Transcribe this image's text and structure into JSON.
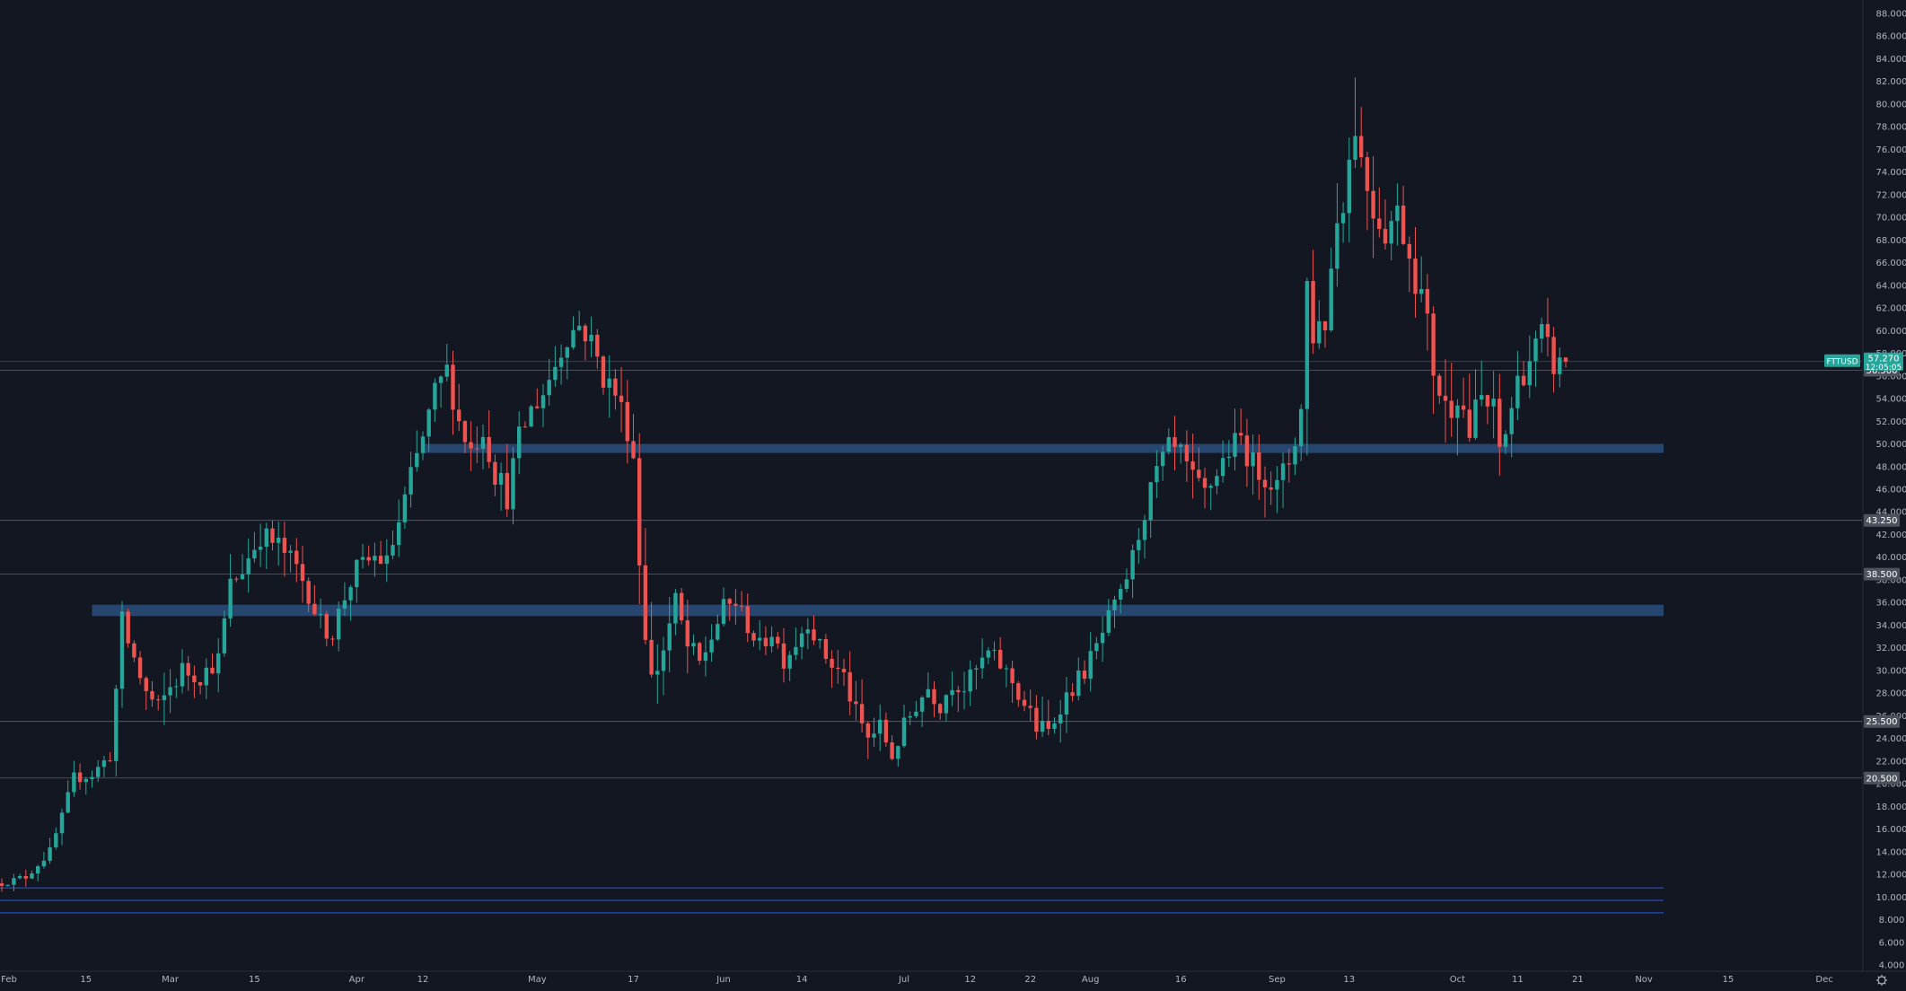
{
  "chart_data": {
    "type": "candlestick",
    "symbol": "FTTUSD",
    "last_price": "57.270",
    "countdown": "12:05:05",
    "ylim": [
      4,
      88
    ],
    "y_ticks": [
      4,
      6,
      8,
      10,
      12,
      14,
      16,
      18,
      20,
      22,
      24,
      26,
      28,
      30,
      32,
      34,
      36,
      38,
      40,
      42,
      44,
      46,
      48,
      50,
      52,
      54,
      56,
      58,
      60,
      62,
      64,
      66,
      68,
      70,
      72,
      74,
      76,
      78,
      80,
      82,
      84,
      86,
      88
    ],
    "y_tick_decimals": 3,
    "x_labels": [
      {
        "label": "Feb",
        "day": 0
      },
      {
        "label": "15",
        "day": 14
      },
      {
        "label": "Mar",
        "day": 28
      },
      {
        "label": "15",
        "day": 42
      },
      {
        "label": "Apr",
        "day": 59
      },
      {
        "label": "12",
        "day": 70
      },
      {
        "label": "May",
        "day": 89
      },
      {
        "label": "17",
        "day": 105
      },
      {
        "label": "Jun",
        "day": 120
      },
      {
        "label": "14",
        "day": 133
      },
      {
        "label": "Jul",
        "day": 150
      },
      {
        "label": "12",
        "day": 161
      },
      {
        "label": "22",
        "day": 171
      },
      {
        "label": "Aug",
        "day": 181
      },
      {
        "label": "16",
        "day": 196
      },
      {
        "label": "Sep",
        "day": 212
      },
      {
        "label": "13",
        "day": 224
      },
      {
        "label": "Oct",
        "day": 242
      },
      {
        "label": "11",
        "day": 252
      },
      {
        "label": "21",
        "day": 262
      },
      {
        "label": "Nov",
        "day": 273
      },
      {
        "label": "15",
        "day": 287
      },
      {
        "label": "Dec",
        "day": 303
      }
    ],
    "levels": [
      {
        "value": 56.5,
        "label": "56.500"
      },
      {
        "value": 43.25,
        "label": "43.250"
      },
      {
        "value": 38.5,
        "label": "38.500"
      },
      {
        "value": 25.5,
        "label": "25.500"
      },
      {
        "value": 20.5,
        "label": "20.500"
      }
    ],
    "zones": [
      {
        "low": 49.2,
        "high": 50.0
      },
      {
        "low": 34.8,
        "high": 35.8
      }
    ],
    "blue_lines": [
      10.8,
      9.7,
      8.6
    ],
    "colors": {
      "background": "#131722",
      "up": "#26a69a",
      "down": "#ef5350",
      "zone": "#2a4e7c",
      "blue_line": "#2962ff",
      "grid_text": "#b2b5be",
      "badge": "#26a69a"
    },
    "anchors": [
      [
        0,
        11.2,
        0.6
      ],
      [
        4,
        11.8,
        0.8
      ],
      [
        8,
        14.0,
        1.0
      ],
      [
        10,
        17.0,
        1.2
      ],
      [
        12,
        20.5,
        1.3
      ],
      [
        15,
        20.8,
        1.2
      ],
      [
        18,
        22.5,
        1.5
      ],
      [
        20,
        34.0,
        3.0
      ],
      [
        22,
        31.0,
        3.0
      ],
      [
        24,
        28.0,
        2.5
      ],
      [
        26,
        26.5,
        2.5
      ],
      [
        28,
        28.5,
        2.5
      ],
      [
        30,
        30.0,
        2.5
      ],
      [
        33,
        29.5,
        2.0
      ],
      [
        36,
        31.0,
        2.0
      ],
      [
        38,
        37.5,
        2.5
      ],
      [
        40,
        39.0,
        2.5
      ],
      [
        43,
        42.0,
        2.5
      ],
      [
        46,
        41.0,
        2.5
      ],
      [
        49,
        39.0,
        2.5
      ],
      [
        51,
        37.0,
        2.5
      ],
      [
        53,
        34.0,
        2.5
      ],
      [
        55,
        33.5,
        2.5
      ],
      [
        57,
        36.5,
        2.0
      ],
      [
        59,
        39.0,
        2.0
      ],
      [
        62,
        40.0,
        2.0
      ],
      [
        64,
        39.5,
        2.0
      ],
      [
        66,
        43.0,
        2.5
      ],
      [
        68,
        47.0,
        2.5
      ],
      [
        70,
        50.5,
        2.5
      ],
      [
        72,
        54.5,
        2.5
      ],
      [
        74,
        56.5,
        2.5
      ],
      [
        76,
        52.0,
        3.0
      ],
      [
        78,
        49.5,
        3.0
      ],
      [
        80,
        51.5,
        3.0
      ],
      [
        82,
        47.5,
        3.0
      ],
      [
        84,
        45.5,
        3.0
      ],
      [
        86,
        50.5,
        2.5
      ],
      [
        88,
        53.0,
        2.5
      ],
      [
        90,
        54.5,
        2.5
      ],
      [
        92,
        57.0,
        2.5
      ],
      [
        94,
        59.5,
        2.5
      ],
      [
        96,
        60.5,
        2.5
      ],
      [
        98,
        59.0,
        2.5
      ],
      [
        100,
        56.0,
        3.0
      ],
      [
        102,
        54.5,
        3.0
      ],
      [
        104,
        51.5,
        3.0
      ],
      [
        105,
        49.0,
        3.0
      ],
      [
        106,
        40.0,
        5.0
      ],
      [
        107,
        34.0,
        4.0
      ],
      [
        108,
        29.0,
        4.0
      ],
      [
        110,
        32.0,
        3.0
      ],
      [
        112,
        36.0,
        2.5
      ],
      [
        114,
        32.0,
        3.0
      ],
      [
        116,
        30.5,
        2.5
      ],
      [
        118,
        33.0,
        2.5
      ],
      [
        120,
        35.5,
        2.0
      ],
      [
        122,
        36.0,
        2.0
      ],
      [
        124,
        34.0,
        2.0
      ],
      [
        126,
        32.0,
        2.0
      ],
      [
        128,
        33.5,
        2.0
      ],
      [
        130,
        31.0,
        2.0
      ],
      [
        132,
        32.5,
        2.0
      ],
      [
        134,
        34.5,
        2.0
      ],
      [
        136,
        32.0,
        2.0
      ],
      [
        138,
        30.5,
        2.0
      ],
      [
        140,
        29.5,
        2.0
      ],
      [
        142,
        26.0,
        2.5
      ],
      [
        144,
        24.0,
        2.5
      ],
      [
        146,
        25.0,
        2.0
      ],
      [
        148,
        22.5,
        2.0
      ],
      [
        150,
        25.0,
        2.0
      ],
      [
        152,
        27.0,
        2.0
      ],
      [
        154,
        28.5,
        2.0
      ],
      [
        156,
        27.0,
        2.0
      ],
      [
        158,
        29.0,
        2.0
      ],
      [
        160,
        28.5,
        2.0
      ],
      [
        162,
        30.0,
        2.0
      ],
      [
        164,
        31.5,
        2.0
      ],
      [
        166,
        30.5,
        2.0
      ],
      [
        168,
        29.0,
        2.0
      ],
      [
        170,
        27.0,
        2.5
      ],
      [
        172,
        25.0,
        2.5
      ],
      [
        174,
        24.5,
        2.5
      ],
      [
        176,
        27.0,
        2.0
      ],
      [
        178,
        28.5,
        2.0
      ],
      [
        180,
        30.0,
        2.0
      ],
      [
        182,
        32.0,
        2.0
      ],
      [
        184,
        34.5,
        2.0
      ],
      [
        186,
        36.5,
        2.0
      ],
      [
        188,
        40.0,
        2.0
      ],
      [
        190,
        44.0,
        2.0
      ],
      [
        192,
        47.5,
        2.5
      ],
      [
        194,
        49.5,
        2.5
      ],
      [
        196,
        49.0,
        2.5
      ],
      [
        198,
        46.5,
        3.0
      ],
      [
        200,
        45.5,
        3.0
      ],
      [
        202,
        47.5,
        2.5
      ],
      [
        204,
        49.5,
        2.5
      ],
      [
        206,
        50.5,
        2.5
      ],
      [
        208,
        48.0,
        3.0
      ],
      [
        210,
        47.5,
        3.0
      ],
      [
        212,
        46.0,
        3.0
      ],
      [
        214,
        48.5,
        3.0
      ],
      [
        216,
        53.0,
        4.0
      ],
      [
        217,
        64.0,
        5.0
      ],
      [
        218,
        60.0,
        4.0
      ],
      [
        220,
        61.0,
        4.0
      ],
      [
        222,
        70.0,
        5.0
      ],
      [
        224,
        75.0,
        6.0
      ],
      [
        225,
        79.0,
        6.0
      ],
      [
        226,
        75.0,
        5.0
      ],
      [
        228,
        71.0,
        4.0
      ],
      [
        230,
        69.0,
        4.0
      ],
      [
        232,
        70.5,
        3.0
      ],
      [
        234,
        67.0,
        4.0
      ],
      [
        236,
        63.0,
        4.0
      ],
      [
        238,
        57.0,
        5.0
      ],
      [
        240,
        53.0,
        5.0
      ],
      [
        242,
        55.0,
        4.0
      ],
      [
        244,
        51.0,
        4.0
      ],
      [
        246,
        54.0,
        4.0
      ],
      [
        248,
        52.5,
        4.0
      ],
      [
        249,
        49.5,
        3.0
      ],
      [
        250,
        51.0,
        3.0
      ],
      [
        252,
        55.5,
        3.0
      ],
      [
        254,
        57.5,
        3.0
      ],
      [
        256,
        59.5,
        3.0
      ],
      [
        258,
        57.0,
        3.0
      ],
      [
        260,
        57.27,
        1.0
      ]
    ]
  }
}
